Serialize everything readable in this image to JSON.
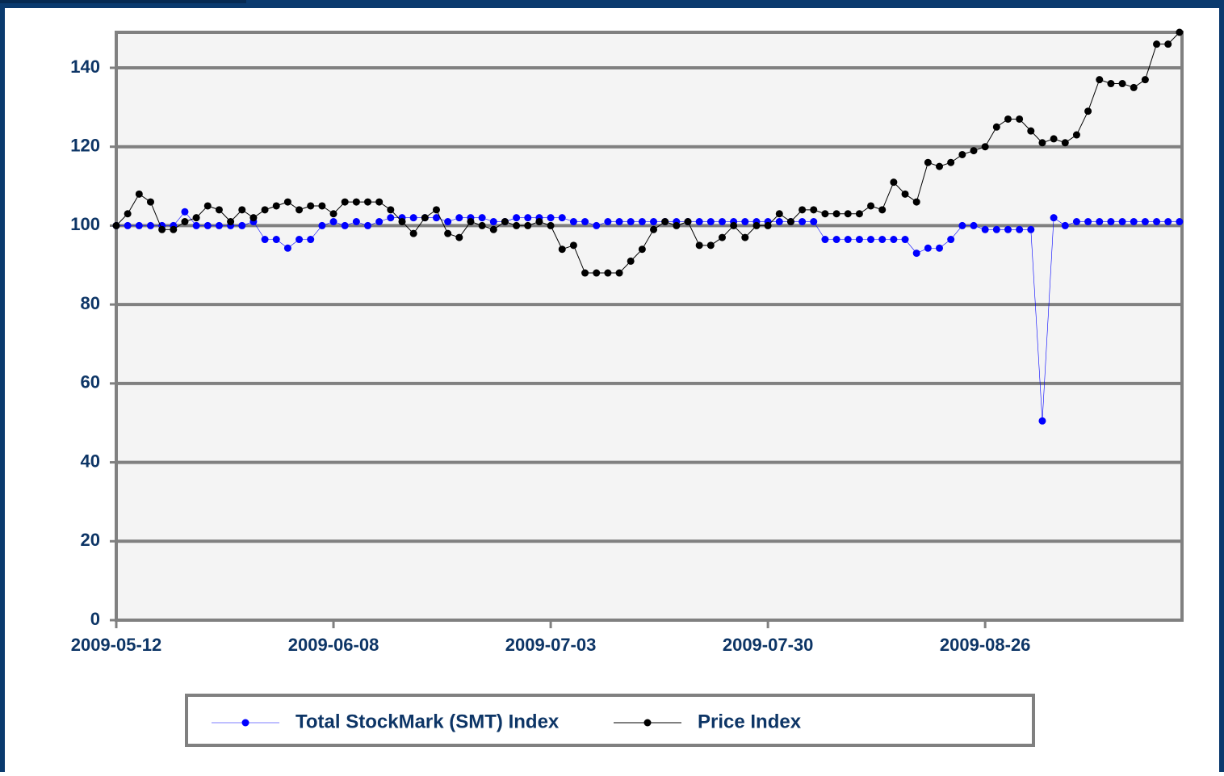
{
  "chart_data": {
    "type": "line",
    "categories": [
      "2009-05-12",
      null,
      null,
      null,
      null,
      null,
      null,
      null,
      null,
      null,
      null,
      null,
      null,
      null,
      null,
      null,
      null,
      null,
      null,
      "2009-06-08",
      null,
      null,
      null,
      null,
      null,
      null,
      null,
      null,
      null,
      null,
      null,
      null,
      null,
      null,
      null,
      null,
      null,
      null,
      "2009-07-03",
      null,
      null,
      null,
      null,
      null,
      null,
      null,
      null,
      null,
      null,
      null,
      null,
      null,
      null,
      null,
      null,
      null,
      null,
      "2009-07-30",
      null,
      null,
      null,
      null,
      null,
      null,
      null,
      null,
      null,
      null,
      null,
      null,
      null,
      null,
      null,
      null,
      null,
      null,
      "2009-08-26",
      null,
      null,
      null,
      null,
      null,
      null,
      null,
      null,
      null,
      null,
      null,
      null,
      null,
      null,
      null,
      null,
      null
    ],
    "series": [
      {
        "name": "Total StockMark (SMT) Index",
        "color": "#0000ff",
        "values": [
          100,
          100,
          100,
          100,
          100,
          100,
          103.5,
          100,
          100,
          100,
          100,
          100,
          101,
          96.5,
          96.5,
          94.3,
          96.5,
          96.5,
          100,
          101,
          100,
          101,
          100,
          101,
          102,
          102,
          102,
          102,
          102,
          101,
          102,
          102,
          102,
          101,
          101,
          102,
          102,
          102,
          102,
          102,
          101,
          101,
          100,
          101,
          101,
          101,
          101,
          101,
          101,
          101,
          101,
          101,
          101,
          101,
          101,
          101,
          101,
          101,
          101,
          101,
          101,
          101,
          96.5,
          96.5,
          96.5,
          96.5,
          96.5,
          96.5,
          96.5,
          96.5,
          93,
          94.3,
          94.3,
          96.5,
          100,
          100,
          99,
          99,
          99,
          99,
          99,
          50.5,
          102,
          100,
          101,
          101,
          101,
          101,
          101,
          101,
          101,
          101,
          101,
          101
        ]
      },
      {
        "name": "Price Index",
        "color": "#000000",
        "values": [
          100,
          103,
          108,
          106,
          99,
          99,
          101,
          102,
          105,
          104,
          101,
          104,
          102,
          104,
          105,
          106,
          104,
          105,
          105,
          103,
          106,
          106,
          106,
          106,
          104,
          101,
          98,
          102,
          104,
          98,
          97,
          101,
          100,
          99,
          101,
          100,
          100,
          101,
          100,
          94,
          95,
          88,
          88,
          88,
          88,
          91,
          94,
          99,
          101,
          100,
          101,
          95,
          95,
          97,
          100,
          97,
          100,
          100,
          103,
          101,
          104,
          104,
          103,
          103,
          103,
          103,
          105,
          104,
          111,
          108,
          106,
          116,
          115,
          116,
          118,
          119,
          120,
          125,
          127,
          127,
          124,
          121,
          122,
          121,
          123,
          129,
          137,
          136,
          136,
          135,
          137,
          146,
          146,
          149
        ]
      }
    ],
    "ylim": [
      0,
      149
    ],
    "yticks": [
      0,
      20,
      40,
      60,
      80,
      100,
      120,
      140
    ],
    "grid": true,
    "legend": "bottom"
  }
}
